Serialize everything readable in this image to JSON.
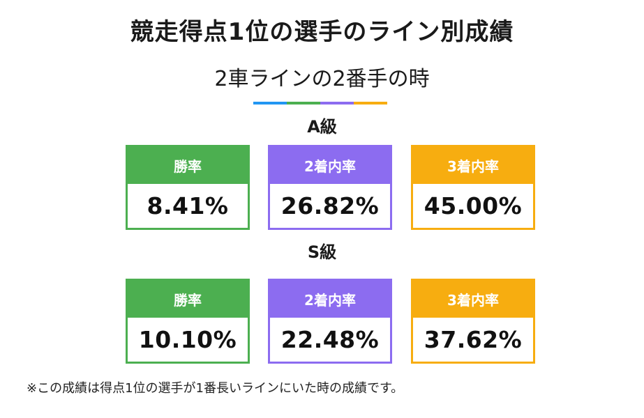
{
  "title": "競走得点1位の選手のライン別成績",
  "subtitle": "2車ラインの2番手の時",
  "accent_colors": [
    "#2196f3",
    "#4caf50",
    "#8c6cf0",
    "#f7ad10"
  ],
  "sections": [
    {
      "grade": "A級",
      "cards": [
        {
          "label": "勝率",
          "value": "8.41%",
          "color": "#4caf50"
        },
        {
          "label": "2着内率",
          "value": "26.82%",
          "color": "#8c6cf0"
        },
        {
          "label": "3着内率",
          "value": "45.00%",
          "color": "#f7ad10"
        }
      ]
    },
    {
      "grade": "S級",
      "cards": [
        {
          "label": "勝率",
          "value": "10.10%",
          "color": "#4caf50"
        },
        {
          "label": "2着内率",
          "value": "22.48%",
          "color": "#8c6cf0"
        },
        {
          "label": "3着内率",
          "value": "37.62%",
          "color": "#f7ad10"
        }
      ]
    }
  ],
  "note": "※この成績は得点1位の選手が1番長いラインにいた時の成績です。"
}
